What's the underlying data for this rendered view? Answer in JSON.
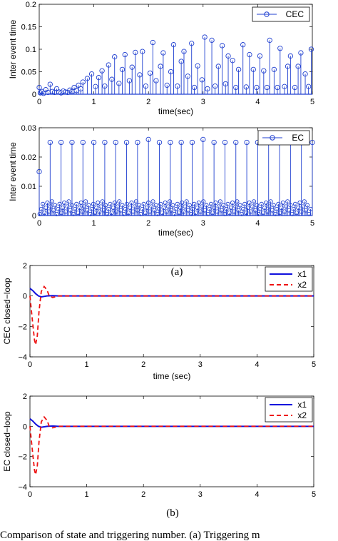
{
  "figure": {
    "label_a": "(a)",
    "label_b": "(b)",
    "caption_fragment": "Comparison of state and triggering number. (a) Triggering m"
  },
  "colors": {
    "stem": "#1f3fd0",
    "x1": "#1010dd",
    "x2": "#ee1111"
  },
  "chart_data": [
    {
      "type": "stem",
      "ylabel": "Inter event time",
      "xlabel": "time(sec)",
      "legend": [
        "CEC"
      ],
      "legend_position": "top-right",
      "xlim": [
        0,
        5
      ],
      "ylim": [
        0,
        0.2
      ],
      "xticks": [
        "0",
        "1",
        "2",
        "3",
        "4",
        "5"
      ],
      "yticks": [
        "0",
        "0.05",
        "0.1",
        "0.15",
        "0.2"
      ],
      "series": [
        {
          "name": "CEC",
          "x": [
            0.0,
            0.02,
            0.05,
            0.08,
            0.12,
            0.16,
            0.2,
            0.24,
            0.28,
            0.32,
            0.36,
            0.4,
            0.44,
            0.48,
            0.52,
            0.56,
            0.6,
            0.64,
            0.68,
            0.72,
            0.76,
            0.8,
            0.88,
            0.96,
            1.03,
            1.09,
            1.15,
            1.2,
            1.27,
            1.33,
            1.38,
            1.46,
            1.52,
            1.57,
            1.65,
            1.7,
            1.76,
            1.84,
            1.89,
            1.95,
            2.03,
            2.08,
            2.14,
            2.22,
            2.27,
            2.34,
            2.41,
            2.46,
            2.53,
            2.6,
            2.65,
            2.72,
            2.79,
            2.84,
            2.9,
            2.98,
            3.03,
            3.08,
            3.16,
            3.22,
            3.28,
            3.35,
            3.41,
            3.46,
            3.54,
            3.6,
            3.65,
            3.73,
            3.79,
            3.85,
            3.92,
            3.98,
            4.04,
            4.11,
            4.17,
            4.22,
            4.3,
            4.36,
            4.41,
            4.49,
            4.55,
            4.6,
            4.68,
            4.74,
            4.79,
            4.87,
            4.93,
            4.98
          ],
          "values": [
            0.015,
            0.003,
            0.006,
            0.002,
            0.01,
            0.004,
            0.022,
            0.006,
            0.004,
            0.012,
            0.005,
            0.003,
            0.007,
            0.005,
            0.004,
            0.009,
            0.006,
            0.015,
            0.008,
            0.02,
            0.012,
            0.027,
            0.035,
            0.045,
            0.017,
            0.037,
            0.052,
            0.018,
            0.065,
            0.033,
            0.083,
            0.024,
            0.055,
            0.088,
            0.03,
            0.06,
            0.093,
            0.043,
            0.095,
            0.018,
            0.047,
            0.115,
            0.03,
            0.062,
            0.092,
            0.02,
            0.05,
            0.11,
            0.018,
            0.073,
            0.095,
            0.04,
            0.113,
            0.015,
            0.063,
            0.032,
            0.127,
            0.012,
            0.12,
            0.018,
            0.062,
            0.108,
            0.023,
            0.085,
            0.075,
            0.015,
            0.055,
            0.11,
            0.016,
            0.088,
            0.055,
            0.015,
            0.085,
            0.052,
            0.015,
            0.12,
            0.055,
            0.015,
            0.102,
            0.017,
            0.062,
            0.085,
            0.015,
            0.062,
            0.092,
            0.045,
            0.017,
            0.1
          ]
        }
      ]
    },
    {
      "type": "stem",
      "ylabel": "Inter event time",
      "xlabel": "time(sec)",
      "legend": [
        "EC"
      ],
      "legend_position": "top-right",
      "xlim": [
        0,
        5
      ],
      "ylim": [
        0,
        0.03
      ],
      "xticks": [
        "0",
        "1",
        "2",
        "3",
        "4",
        "5"
      ],
      "yticks": [
        "0",
        "0.01",
        "0.02",
        "0.03"
      ],
      "series": [
        {
          "name": "EC",
          "large_x": [
            0.0,
            0.2,
            0.4,
            0.6,
            0.8,
            1.0,
            1.2,
            1.4,
            1.6,
            1.8,
            2.0,
            2.2,
            2.4,
            2.6,
            2.8,
            3.0,
            3.2,
            3.4,
            3.6,
            3.8,
            4.0,
            4.2,
            4.4,
            4.6,
            4.8,
            5.0
          ],
          "large_values": [
            0.015,
            0.025,
            0.025,
            0.025,
            0.025,
            0.025,
            0.025,
            0.025,
            0.025,
            0.025,
            0.026,
            0.025,
            0.025,
            0.025,
            0.025,
            0.026,
            0.025,
            0.025,
            0.025,
            0.025,
            0.025,
            0.025,
            0.025,
            0.025,
            0.025,
            0.025
          ],
          "small_values_range": [
            0.0005,
            0.0048
          ]
        }
      ]
    },
    {
      "type": "line",
      "ylabel": "CEC closed−loop",
      "xlabel": "time (sec)",
      "legend": [
        "x1",
        "x2"
      ],
      "legend_position": "top-right",
      "xlim": [
        0,
        5
      ],
      "ylim": [
        -4,
        2
      ],
      "xticks": [
        "0",
        "1",
        "2",
        "3",
        "4",
        "5"
      ],
      "yticks": [
        "−4",
        "−2",
        "0",
        "2"
      ],
      "series": [
        {
          "name": "x1",
          "style": "solid",
          "x": [
            0,
            0.05,
            0.1,
            0.15,
            0.2,
            0.25,
            0.3,
            0.4,
            0.5,
            5
          ],
          "values": [
            0.5,
            0.35,
            0.15,
            0.0,
            -0.06,
            -0.03,
            0.0,
            0.02,
            0.0,
            0.0
          ]
        },
        {
          "name": "x2",
          "style": "dashed",
          "x": [
            0,
            0.04,
            0.08,
            0.1,
            0.13,
            0.16,
            0.2,
            0.25,
            0.3,
            0.34,
            0.4,
            0.5,
            5
          ],
          "values": [
            0.0,
            -1.5,
            -2.9,
            -3.2,
            -2.6,
            -1.0,
            0.3,
            0.62,
            0.4,
            0.0,
            -0.1,
            0.0,
            0.0
          ]
        }
      ]
    },
    {
      "type": "line",
      "ylabel": "EC closed−loop",
      "xlabel": "",
      "legend": [
        "x1",
        "x2"
      ],
      "legend_position": "top-right",
      "xlim": [
        0,
        5
      ],
      "ylim": [
        -4,
        2
      ],
      "xticks": [
        "0",
        "1",
        "2",
        "3",
        "4",
        "5"
      ],
      "yticks": [
        "−4",
        "−2",
        "0",
        "2"
      ],
      "series": [
        {
          "name": "x1",
          "style": "solid",
          "x": [
            0,
            0.05,
            0.1,
            0.15,
            0.2,
            0.25,
            0.3,
            0.4,
            0.5,
            5
          ],
          "values": [
            0.5,
            0.35,
            0.15,
            0.0,
            -0.06,
            -0.03,
            0.0,
            0.02,
            0.0,
            0.0
          ]
        },
        {
          "name": "x2",
          "style": "dashed",
          "x": [
            0,
            0.04,
            0.08,
            0.1,
            0.13,
            0.16,
            0.2,
            0.25,
            0.3,
            0.34,
            0.4,
            0.5,
            5
          ],
          "values": [
            0.0,
            -1.5,
            -2.9,
            -3.2,
            -2.6,
            -1.0,
            0.3,
            0.62,
            0.4,
            0.0,
            -0.1,
            0.0,
            0.0
          ]
        }
      ]
    }
  ]
}
